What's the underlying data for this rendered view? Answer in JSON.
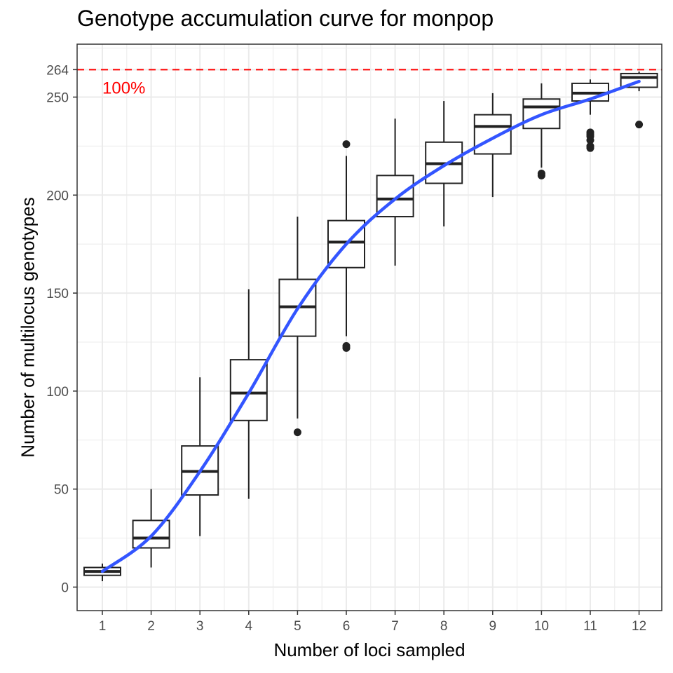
{
  "chart_data": {
    "type": "boxplot",
    "title": "Genotype accumulation curve for monpop",
    "xlabel": "Number of loci sampled",
    "ylabel": "Number of multilocus genotypes",
    "x_ticks": [
      "1",
      "2",
      "3",
      "4",
      "5",
      "6",
      "7",
      "8",
      "9",
      "10",
      "11",
      "12"
    ],
    "y_ticks": [
      0,
      50,
      100,
      150,
      200,
      250,
      264
    ],
    "ylim": [
      -12,
      277
    ],
    "grid": true,
    "reference_line": {
      "value": 264,
      "label": "100%",
      "color": "#ff0000",
      "style": "dashed"
    },
    "boxes": [
      {
        "x": 1,
        "min": 3,
        "q1": 6,
        "median": 8,
        "q3": 10,
        "max": 12,
        "outliers": []
      },
      {
        "x": 2,
        "min": 10,
        "q1": 20,
        "median": 25,
        "q3": 34,
        "max": 50,
        "outliers": []
      },
      {
        "x": 3,
        "min": 26,
        "q1": 47,
        "median": 59,
        "q3": 72,
        "max": 107,
        "outliers": []
      },
      {
        "x": 4,
        "min": 45,
        "q1": 85,
        "median": 99,
        "q3": 116,
        "max": 152,
        "outliers": []
      },
      {
        "x": 5,
        "min": 86,
        "q1": 128,
        "median": 143,
        "q3": 157,
        "max": 189,
        "outliers": [
          79
        ]
      },
      {
        "x": 6,
        "min": 128,
        "q1": 163,
        "median": 176,
        "q3": 187,
        "max": 220,
        "outliers": [
          122,
          123,
          226
        ]
      },
      {
        "x": 7,
        "min": 164,
        "q1": 189,
        "median": 198,
        "q3": 210,
        "max": 239,
        "outliers": []
      },
      {
        "x": 8,
        "min": 184,
        "q1": 206,
        "median": 216,
        "q3": 227,
        "max": 248,
        "outliers": []
      },
      {
        "x": 9,
        "min": 199,
        "q1": 221,
        "median": 235,
        "q3": 241,
        "max": 252,
        "outliers": []
      },
      {
        "x": 10,
        "min": 214,
        "q1": 234,
        "median": 245,
        "q3": 249,
        "max": 257,
        "outliers": [
          210,
          211
        ]
      },
      {
        "x": 11,
        "min": 241,
        "q1": 248,
        "median": 252,
        "q3": 257,
        "max": 259,
        "outliers": [
          224,
          225,
          228,
          230,
          231,
          232
        ]
      },
      {
        "x": 12,
        "min": 253,
        "q1": 255,
        "median": 260,
        "q3": 262,
        "max": 263,
        "outliers": [
          236
        ]
      }
    ],
    "smooth_curve": {
      "color": "#3355ff",
      "x": [
        1,
        2,
        3,
        4,
        5,
        6,
        7,
        8,
        9,
        10,
        11,
        12
      ],
      "y": [
        8,
        26,
        59,
        99,
        142,
        175,
        198,
        215,
        229,
        241,
        249,
        258
      ]
    },
    "colors": {
      "box_stroke": "#222222",
      "outlier": "#222222",
      "panel_border": "#333333",
      "grid": "#ebebeb"
    }
  }
}
